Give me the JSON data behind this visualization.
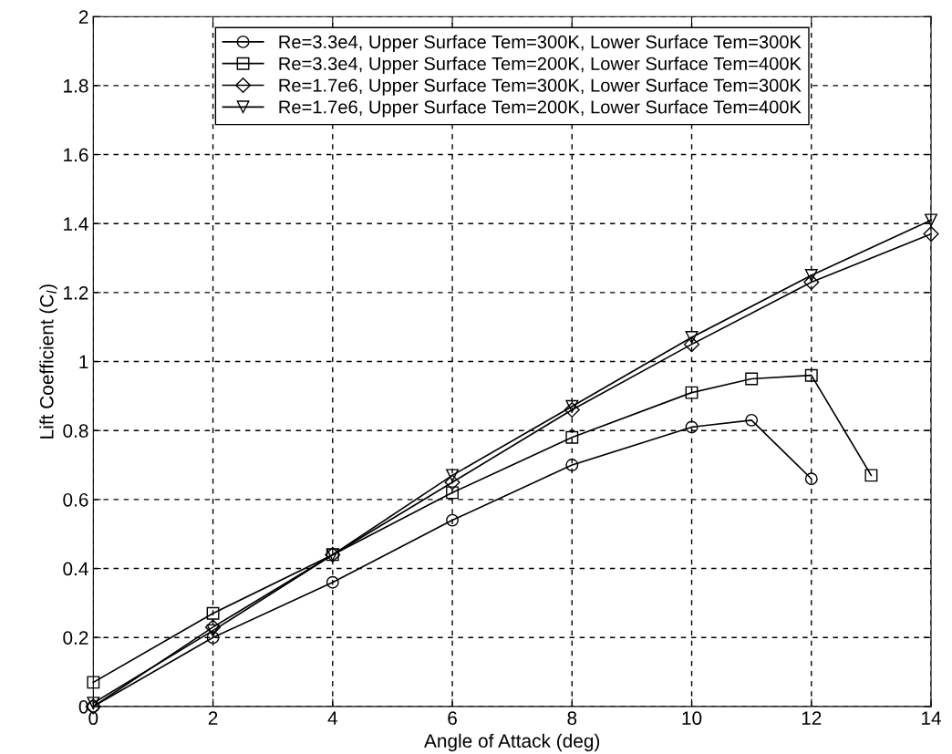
{
  "chart_data": {
    "type": "line",
    "xlabel": "Angle of Attack (deg)",
    "ylabel": "Lift Coefficient (C$_{l}$)",
    "xlim": [
      0,
      14
    ],
    "ylim": [
      0,
      2
    ],
    "xticks": [
      0,
      2,
      4,
      6,
      8,
      10,
      12,
      14
    ],
    "yticks": [
      0,
      0.2,
      0.4,
      0.6,
      0.8,
      1,
      1.2,
      1.4,
      1.6,
      1.8,
      2
    ],
    "grid": true,
    "legend": "top",
    "line_style": "solid",
    "series": [
      {
        "name": "Re=3.3e4, Upper Surface Tem=300K, Lower Surface Tem=300K",
        "color": "#000000",
        "marker": "circle",
        "x": [
          0,
          2,
          4,
          6,
          8,
          10,
          11,
          12
        ],
        "values": [
          0.0,
          0.2,
          0.36,
          0.54,
          0.7,
          0.81,
          0.83,
          0.66
        ]
      },
      {
        "name": "Re=3.3e4, Upper Surface Tem=200K, Lower Surface Tem=400K",
        "color": "#000000",
        "marker": "square",
        "x": [
          0,
          2,
          4,
          6,
          8,
          10,
          11,
          12,
          13
        ],
        "values": [
          0.07,
          0.27,
          0.44,
          0.62,
          0.78,
          0.91,
          0.95,
          0.96,
          0.67
        ]
      },
      {
        "name": "Re=1.7e6, Upper Surface Tem=300K, Lower Surface Tem=300K",
        "color": "#000000",
        "marker": "diamond",
        "x": [
          0,
          2,
          4,
          6,
          8,
          10,
          12,
          14
        ],
        "values": [
          0.0,
          0.23,
          0.44,
          0.65,
          0.86,
          1.05,
          1.23,
          1.37
        ]
      },
      {
        "name": "Re=1.7e6, Upper Surface Tem=200K, Lower Surface Tem=400K",
        "color": "#000000",
        "marker": "triangle",
        "x": [
          0,
          2,
          4,
          6,
          8,
          10,
          12,
          14
        ],
        "values": [
          0.01,
          0.22,
          0.44,
          0.67,
          0.87,
          1.07,
          1.25,
          1.41
        ]
      }
    ]
  }
}
